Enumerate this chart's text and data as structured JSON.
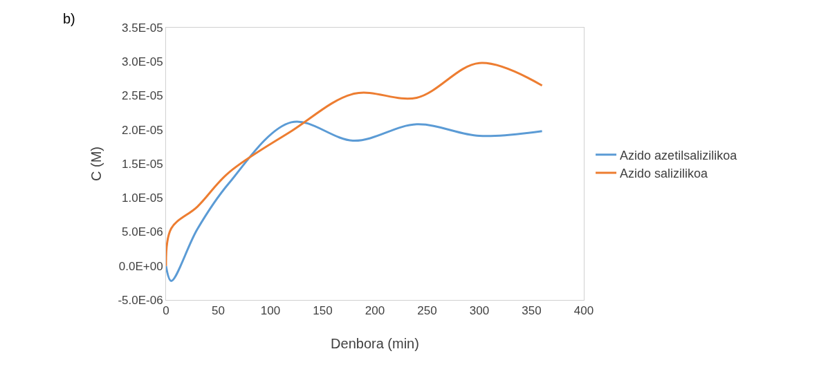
{
  "chart_data": {
    "type": "line",
    "xlabel": "Denbora (min)",
    "ylabel": "C (M)",
    "annotations": [
      "b)"
    ],
    "x": [
      0,
      5,
      30,
      60,
      120,
      180,
      240,
      300,
      360
    ],
    "series": [
      {
        "name": "Azido azetilsalizilikoa",
        "color": "#5b9bd5",
        "values": [
          0,
          -2.2e-06,
          5.4e-06,
          1.21e-05,
          2.11e-05,
          1.84e-05,
          2.08e-05,
          1.91e-05,
          1.98e-05
        ]
      },
      {
        "name": "Azido salizilikoa",
        "color": "#ed7d31",
        "values": [
          0,
          5.5e-06,
          8.7e-06,
          1.37e-05,
          1.98e-05,
          2.53e-05,
          2.47e-05,
          2.98e-05,
          2.65e-05
        ]
      }
    ],
    "xlim": [
      0,
      400
    ],
    "xticks": [
      0,
      50,
      100,
      150,
      200,
      250,
      300,
      350,
      400
    ],
    "ylim": [
      -5e-06,
      3.5e-05
    ],
    "yticks": [
      {
        "value": -5e-06,
        "label": "-5.0E-06"
      },
      {
        "value": 0,
        "label": "0.0E+00"
      },
      {
        "value": 5e-06,
        "label": "5.0E-06"
      },
      {
        "value": 1e-05,
        "label": "1.0E-05"
      },
      {
        "value": 1.5e-05,
        "label": "1.5E-05"
      },
      {
        "value": 2e-05,
        "label": "2.0E-05"
      },
      {
        "value": 2.5e-05,
        "label": "2.5E-05"
      },
      {
        "value": 3e-05,
        "label": "3.0E-05"
      },
      {
        "value": 3.5e-05,
        "label": "3.5E-05"
      }
    ],
    "grid": false,
    "legend": "right",
    "marker": "none",
    "line_style": "solid"
  }
}
